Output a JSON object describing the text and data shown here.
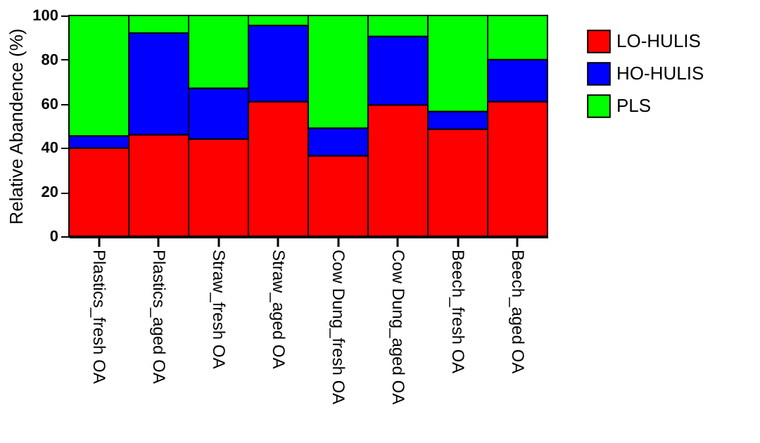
{
  "chart_data": {
    "type": "bar",
    "stacked": true,
    "ylabel": "Relative Abandence (%)",
    "categories": [
      "Plastics_fresh OA",
      "Plastics_aged OA",
      "Straw_fresh OA",
      "Straw_aged OA",
      "Cow Dung_fresh OA",
      "Cow Dung_aged OA",
      "Beech_fresh OA",
      "Beech_aged OA"
    ],
    "series": [
      {
        "name": "LO-HULIS",
        "color": "#ff0000",
        "values": [
          40,
          46,
          44,
          61,
          36.5,
          59.5,
          48.5,
          61
        ]
      },
      {
        "name": "HO-HULIS",
        "color": "#0000ff",
        "values": [
          5.5,
          46,
          23,
          34.5,
          12.5,
          31,
          8,
          19
        ]
      },
      {
        "name": "PLS",
        "color": "#00ff00",
        "values": [
          54.5,
          8,
          33,
          4.5,
          51,
          9.5,
          43.5,
          20
        ]
      }
    ],
    "ylim": [
      0,
      100
    ],
    "yticks": [
      0,
      20,
      40,
      60,
      80,
      100
    ],
    "legend": "right"
  }
}
